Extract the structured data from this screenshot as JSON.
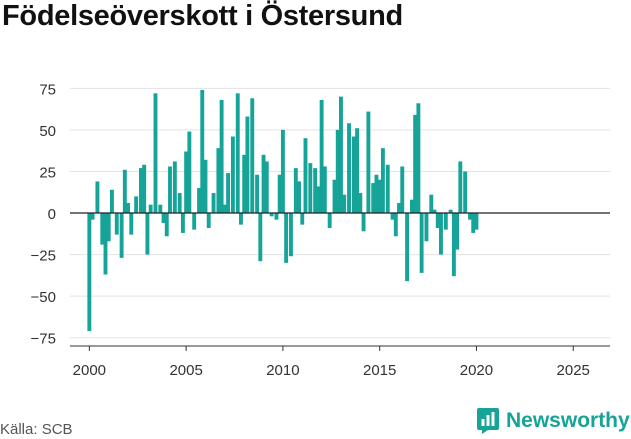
{
  "title": "Födelseöverskott i Östersund",
  "source": "Källa: SCB",
  "brand": {
    "name": "Newsworthy",
    "icon": "newsworthy-logo-icon",
    "color": "#16a398"
  },
  "chart_data": {
    "type": "bar",
    "title": "Födelseöverskott i Östersund",
    "bar_color": "#16a398",
    "xlim": [
      1999.0,
      2026.9
    ],
    "ylim": [
      -80,
      80
    ],
    "yticks": [
      -75,
      -50,
      -25,
      0,
      25,
      50,
      75
    ],
    "ytick_labels": [
      "−75",
      "−50",
      "−25",
      "0",
      "25",
      "50",
      "75"
    ],
    "xticks": [
      2000,
      2005,
      2010,
      2015,
      2020,
      2025
    ],
    "xtick_labels": [
      "2000",
      "2005",
      "2010",
      "2015",
      "2020",
      "2025"
    ],
    "grid": true,
    "series": [
      {
        "points": [
          {
            "x": "2000-01",
            "y": -71
          },
          {
            "x": "2000-03",
            "y": -4
          },
          {
            "x": "2000-06",
            "y": 19
          },
          {
            "x": "2000-09",
            "y": -19
          },
          {
            "x": "2000-11",
            "y": -37
          },
          {
            "x": "2001-01",
            "y": -17
          },
          {
            "x": "2001-03",
            "y": 14
          },
          {
            "x": "2001-06",
            "y": -13
          },
          {
            "x": "2001-09",
            "y": -27
          },
          {
            "x": "2001-11",
            "y": 26
          },
          {
            "x": "2002-01",
            "y": 6
          },
          {
            "x": "2002-03",
            "y": -13
          },
          {
            "x": "2002-06",
            "y": 10
          },
          {
            "x": "2002-09",
            "y": 27
          },
          {
            "x": "2002-11",
            "y": 29
          },
          {
            "x": "2003-01",
            "y": -25
          },
          {
            "x": "2003-03",
            "y": 5
          },
          {
            "x": "2003-06",
            "y": 72
          },
          {
            "x": "2003-09",
            "y": 5
          },
          {
            "x": "2003-11",
            "y": -6
          },
          {
            "x": "2004-01",
            "y": -14
          },
          {
            "x": "2004-03",
            "y": 28
          },
          {
            "x": "2004-06",
            "y": 31
          },
          {
            "x": "2004-09",
            "y": 12
          },
          {
            "x": "2004-11",
            "y": -12
          },
          {
            "x": "2005-01",
            "y": 37
          },
          {
            "x": "2005-03",
            "y": 49
          },
          {
            "x": "2005-06",
            "y": -10
          },
          {
            "x": "2005-09",
            "y": 15
          },
          {
            "x": "2005-11",
            "y": 74
          },
          {
            "x": "2006-01",
            "y": 32
          },
          {
            "x": "2006-03",
            "y": -9
          },
          {
            "x": "2006-06",
            "y": 12
          },
          {
            "x": "2006-09",
            "y": 39
          },
          {
            "x": "2006-11",
            "y": 68
          },
          {
            "x": "2007-01",
            "y": 5
          },
          {
            "x": "2007-03",
            "y": 24
          },
          {
            "x": "2007-06",
            "y": 46
          },
          {
            "x": "2007-09",
            "y": 72
          },
          {
            "x": "2007-11",
            "y": -7
          },
          {
            "x": "2008-01",
            "y": 35
          },
          {
            "x": "2008-03",
            "y": 58
          },
          {
            "x": "2008-06",
            "y": 69
          },
          {
            "x": "2008-09",
            "y": 23
          },
          {
            "x": "2008-11",
            "y": -29
          },
          {
            "x": "2009-01",
            "y": 35
          },
          {
            "x": "2009-03",
            "y": 31
          },
          {
            "x": "2009-06",
            "y": -2
          },
          {
            "x": "2009-09",
            "y": -4
          },
          {
            "x": "2009-11",
            "y": 23
          },
          {
            "x": "2010-01",
            "y": 50
          },
          {
            "x": "2010-03",
            "y": -30
          },
          {
            "x": "2010-06",
            "y": -26
          },
          {
            "x": "2010-09",
            "y": 27
          },
          {
            "x": "2010-11",
            "y": 19
          },
          {
            "x": "2011-01",
            "y": -7
          },
          {
            "x": "2011-03",
            "y": 45
          },
          {
            "x": "2011-06",
            "y": 30
          },
          {
            "x": "2011-09",
            "y": 27
          },
          {
            "x": "2011-11",
            "y": 16
          },
          {
            "x": "2012-01",
            "y": 68
          },
          {
            "x": "2012-03",
            "y": 28
          },
          {
            "x": "2012-06",
            "y": -9
          },
          {
            "x": "2012-09",
            "y": 20
          },
          {
            "x": "2012-11",
            "y": 50
          },
          {
            "x": "2013-01",
            "y": 70
          },
          {
            "x": "2013-03",
            "y": 11
          },
          {
            "x": "2013-06",
            "y": 54
          },
          {
            "x": "2013-09",
            "y": 46
          },
          {
            "x": "2013-11",
            "y": 51
          },
          {
            "x": "2014-01",
            "y": 12
          },
          {
            "x": "2014-03",
            "y": -11
          },
          {
            "x": "2014-06",
            "y": 61
          },
          {
            "x": "2014-09",
            "y": 18
          },
          {
            "x": "2014-11",
            "y": 23
          },
          {
            "x": "2015-01",
            "y": 20
          },
          {
            "x": "2015-03",
            "y": 39
          },
          {
            "x": "2015-06",
            "y": 29
          },
          {
            "x": "2015-09",
            "y": -4
          },
          {
            "x": "2015-11",
            "y": -14
          },
          {
            "x": "2016-01",
            "y": 6
          },
          {
            "x": "2016-03",
            "y": 28
          },
          {
            "x": "2016-06",
            "y": -41
          },
          {
            "x": "2016-09",
            "y": 8
          },
          {
            "x": "2016-11",
            "y": 59
          },
          {
            "x": "2017-01",
            "y": 66
          },
          {
            "x": "2017-03",
            "y": -36
          },
          {
            "x": "2017-06",
            "y": -17
          },
          {
            "x": "2017-09",
            "y": 11
          },
          {
            "x": "2017-11",
            "y": 2
          },
          {
            "x": "2018-01",
            "y": -9
          },
          {
            "x": "2018-03",
            "y": -25
          },
          {
            "x": "2018-06",
            "y": -10
          },
          {
            "x": "2018-09",
            "y": 2
          },
          {
            "x": "2018-11",
            "y": -38
          },
          {
            "x": "2019-01",
            "y": -22
          },
          {
            "x": "2019-03",
            "y": 31
          },
          {
            "x": "2019-06",
            "y": 25
          },
          {
            "x": "2019-09",
            "y": -4
          },
          {
            "x": "2019-11",
            "y": -12
          },
          {
            "x": "2020-01",
            "y": -10
          }
        ]
      }
    ]
  }
}
